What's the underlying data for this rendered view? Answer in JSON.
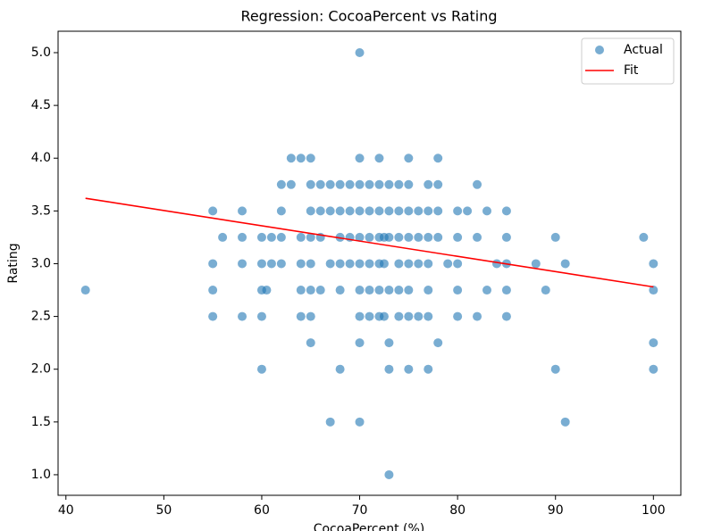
{
  "chart_data": {
    "type": "scatter",
    "title": "Regression: CocoaPercent vs Rating",
    "x_label": "CocoaPercent (%)",
    "y_label": "Rating",
    "xlim": [
      39.2,
      102.8
    ],
    "ylim": [
      0.805,
      5.203
    ],
    "xticks": [
      40,
      50,
      60,
      70,
      80,
      90,
      100
    ],
    "yticks": [
      {
        "value": 1,
        "label": "1.0"
      },
      {
        "value": 1.5,
        "label": "1.5"
      },
      {
        "value": 2,
        "label": "2.0"
      },
      {
        "value": 2.5,
        "label": "2.5"
      },
      {
        "value": 3,
        "label": "3.0"
      },
      {
        "value": 3.5,
        "label": "3.5"
      },
      {
        "value": 4,
        "label": "4.0"
      },
      {
        "value": 4.5,
        "label": "4.5"
      },
      {
        "value": 5,
        "label": "5.0"
      }
    ],
    "legend": "upper right",
    "series": [
      {
        "name": "Actual",
        "mark": "scatter",
        "color": "#1f77b4",
        "x": [
          42,
          55,
          55,
          55,
          55,
          56,
          58,
          58,
          58,
          58,
          60,
          60,
          60,
          60,
          60,
          60.5,
          61,
          61,
          62,
          62,
          62,
          62,
          63,
          63,
          64,
          64,
          64,
          64,
          64,
          65,
          65,
          65,
          65,
          65,
          65,
          65,
          65,
          66,
          66,
          66,
          66,
          67,
          67,
          67,
          67,
          68,
          68,
          68,
          68,
          68,
          68,
          69,
          69,
          69,
          69,
          70,
          70,
          70,
          70,
          70,
          70,
          70,
          70,
          70,
          70,
          71,
          71,
          71,
          71,
          71,
          71,
          72,
          72,
          72,
          72,
          72,
          72,
          72,
          72.5,
          72.5,
          72.5,
          73,
          73,
          73,
          73,
          73,
          73,
          73,
          74,
          74,
          74,
          74,
          74,
          74,
          75,
          75,
          75,
          75,
          75,
          75,
          75,
          75,
          76,
          76,
          76,
          76,
          77,
          77,
          77,
          77,
          77,
          77,
          77,
          78,
          78,
          78,
          78,
          78,
          79,
          80,
          80,
          80,
          80,
          80,
          81,
          82,
          82,
          82,
          83,
          83,
          84,
          85,
          85,
          85,
          85,
          85,
          88,
          89,
          90,
          90,
          91,
          91,
          99,
          100,
          100,
          100,
          100
        ],
        "values": [
          2.75,
          3.5,
          3,
          2.75,
          2.5,
          3.25,
          3.5,
          3.25,
          3,
          2.5,
          3.25,
          3,
          2.75,
          2.5,
          2,
          2.75,
          3.25,
          3,
          3.75,
          3.5,
          3.25,
          3,
          4,
          3.75,
          4,
          3.25,
          3,
          2.75,
          2.5,
          4,
          3.75,
          3.5,
          3.25,
          3,
          2.75,
          2.5,
          2.25,
          3.75,
          3.5,
          3.25,
          2.75,
          3.75,
          3.5,
          3,
          1.5,
          3.75,
          3.5,
          3.25,
          3,
          2.75,
          2,
          3.75,
          3.5,
          3.25,
          3,
          5,
          4,
          3.75,
          3.5,
          3.25,
          3,
          2.75,
          2.5,
          2.25,
          1.5,
          3.75,
          3.5,
          3.25,
          3,
          2.75,
          2.5,
          4,
          3.75,
          3.5,
          3.25,
          3,
          2.75,
          2.5,
          3.25,
          3,
          2.5,
          3.75,
          3.5,
          3.25,
          2.75,
          2.25,
          2,
          1,
          3.75,
          3.5,
          3.25,
          3,
          2.75,
          2.5,
          4,
          3.75,
          3.5,
          3.25,
          3,
          2.75,
          2.5,
          2,
          3.5,
          3.25,
          3,
          2.5,
          3.75,
          3.5,
          3.25,
          3,
          2.75,
          2.5,
          2,
          4,
          3.75,
          3.5,
          3.25,
          2.25,
          3,
          3.5,
          3.25,
          3,
          2.75,
          2.5,
          3.5,
          3.75,
          3.25,
          2.5,
          3.5,
          2.75,
          3,
          3.5,
          3.25,
          3,
          2.75,
          2.5,
          3,
          2.75,
          3.25,
          2,
          3,
          1.5,
          3.25,
          3,
          2.75,
          2.25,
          2
        ]
      },
      {
        "name": "Fit",
        "mark": "line",
        "color": "#ff0000",
        "x": [
          42,
          100
        ],
        "values": [
          3.62,
          2.78
        ]
      }
    ]
  }
}
